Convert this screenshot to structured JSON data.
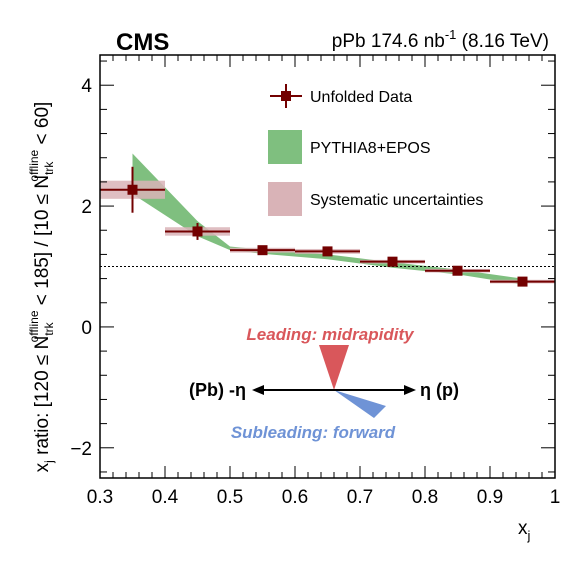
{
  "chart_data": {
    "type": "scatter",
    "xlim": [
      0.3,
      1.0
    ],
    "ylim": [
      -2.5,
      4.5
    ],
    "x_ticks": [
      0.3,
      0.4,
      0.5,
      0.6,
      0.7,
      0.8,
      0.9,
      1.0
    ],
    "x_tick_labels": [
      "0.3",
      "0.4",
      "0.5",
      "0.6",
      "0.7",
      "0.8",
      "0.9",
      "1"
    ],
    "y_ticks": [
      -2,
      0,
      2,
      4
    ],
    "y_tick_labels": [
      "−2",
      "0",
      "2",
      "4"
    ],
    "xlabel_main": "x",
    "xlabel_sub": "j",
    "ylabel_prefix": "x",
    "ylabel_j": "j",
    "ylabel_1": " ratio: [120 ≤ N",
    "ylabel_2": " < 185] / [10 ≤ N",
    "ylabel_3": " < 60]",
    "ylabel_sup": "offline",
    "ylabel_sub": "trk",
    "reference_line": 1.0,
    "experiment": "CMS",
    "lumi_prefix": "pPb 174.6 nb",
    "lumi_exp": "-1",
    "lumi_suffix": " (8.16 TeV)",
    "legend": [
      {
        "label": "Unfolded Data",
        "kind": "marker",
        "color": "#730000"
      },
      {
        "label": "PYTHIA8+EPOS",
        "kind": "band",
        "color": "#7fbf7f"
      },
      {
        "label": "Systematic uncertainties",
        "kind": "box",
        "color": "#d9b3b7"
      }
    ],
    "series": [
      {
        "name": "Unfolded Data",
        "color": "#730000",
        "points": [
          {
            "x": 0.35,
            "y": 2.27,
            "xerr": 0.05,
            "stat": 0.38,
            "sys": 0.15
          },
          {
            "x": 0.45,
            "y": 1.58,
            "xerr": 0.05,
            "stat": 0.14,
            "sys": 0.07
          },
          {
            "x": 0.55,
            "y": 1.27,
            "xerr": 0.05,
            "stat": 0.06,
            "sys": 0.04
          },
          {
            "x": 0.65,
            "y": 1.25,
            "xerr": 0.05,
            "stat": 0.06,
            "sys": 0.04
          },
          {
            "x": 0.75,
            "y": 1.08,
            "xerr": 0.05,
            "stat": 0.05,
            "sys": 0.03
          },
          {
            "x": 0.85,
            "y": 0.93,
            "xerr": 0.05,
            "stat": 0.04,
            "sys": 0.03
          },
          {
            "x": 0.95,
            "y": 0.75,
            "xerr": 0.05,
            "stat": 0.05,
            "sys": 0.03
          }
        ]
      },
      {
        "name": "PYTHIA8+EPOS",
        "color": "#7fbf7f",
        "points": [
          {
            "x": 0.35,
            "lo": 2.2,
            "hi": 2.87
          },
          {
            "x": 0.45,
            "lo": 1.5,
            "hi": 1.75
          },
          {
            "x": 0.5,
            "lo": 1.27,
            "hi": 1.33
          },
          {
            "x": 0.55,
            "lo": 1.21,
            "hi": 1.28
          },
          {
            "x": 0.65,
            "lo": 1.12,
            "hi": 1.2
          },
          {
            "x": 0.75,
            "lo": 0.98,
            "hi": 1.07
          },
          {
            "x": 0.85,
            "lo": 0.87,
            "hi": 0.95
          },
          {
            "x": 0.95,
            "lo": 0.7,
            "hi": 0.8
          }
        ]
      }
    ],
    "inset": {
      "leading_text": "Leading: midrapidity",
      "subleading_text": "Subleading: forward",
      "left_text": "(Pb) -η",
      "right_text": "η (p)",
      "leading_color": "#d9575b",
      "subleading_color": "#6f93d6"
    }
  }
}
